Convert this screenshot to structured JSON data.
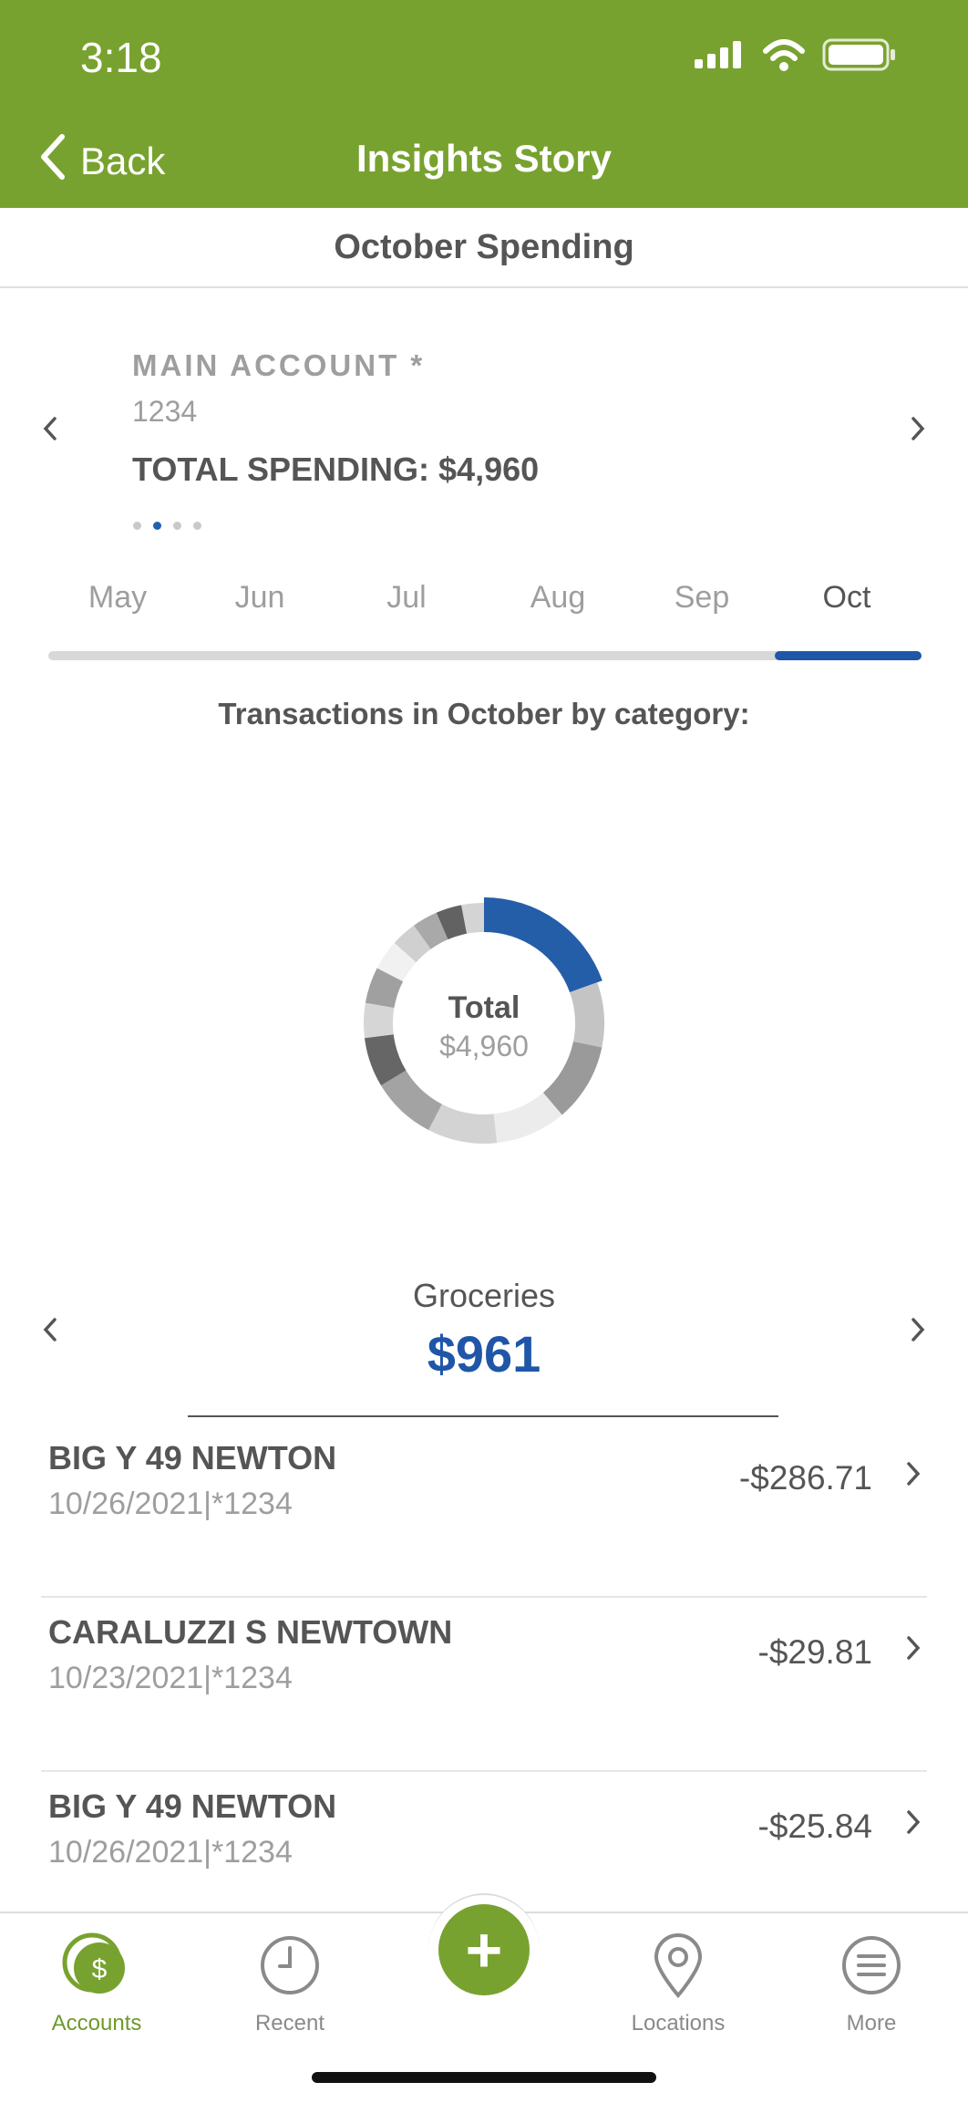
{
  "status_bar": {
    "time": "3:18"
  },
  "header": {
    "back_label": "Back",
    "title": "Insights Story"
  },
  "subheader": {
    "title": "October Spending"
  },
  "account": {
    "name": "MAIN ACCOUNT *",
    "number": "1234",
    "total_spending": "TOTAL SPENDING: $4,960",
    "page_dots": 4,
    "active_dot": 1
  },
  "months": {
    "items": [
      "May",
      "Jun",
      "Jul",
      "Aug",
      "Sep",
      "Oct"
    ],
    "selected": "Oct"
  },
  "chart_data": {
    "type": "pie",
    "title": "Transactions in October by category:",
    "center_label": "Total",
    "center_value": "$4,960",
    "segments": [
      {
        "label": "Groceries",
        "value": 961,
        "color": "#245ea8",
        "selected": true
      },
      {
        "value": 430,
        "color": "#c4c4c4"
      },
      {
        "value": 520,
        "color": "#9a9a9a"
      },
      {
        "value": 470,
        "color": "#ececec"
      },
      {
        "value": 460,
        "color": "#d3d3d3"
      },
      {
        "value": 430,
        "color": "#a3a3a3"
      },
      {
        "value": 330,
        "color": "#666666"
      },
      {
        "value": 230,
        "color": "#d6d6d6"
      },
      {
        "value": 240,
        "color": "#a0a0a0"
      },
      {
        "value": 200,
        "color": "#f1f1f1"
      },
      {
        "value": 170,
        "color": "#d0d0d0"
      },
      {
        "value": 170,
        "color": "#a9a9a9"
      },
      {
        "value": 170,
        "color": "#626262"
      },
      {
        "value": 149,
        "color": "#d4d4d4"
      }
    ]
  },
  "category": {
    "name": "Groceries",
    "amount": "$961"
  },
  "transactions": [
    {
      "name": "BIG Y 49 NEWTON",
      "meta": "10/26/2021|*1234",
      "amount": "-$286.71"
    },
    {
      "name": "CARALUZZI S NEWTOWN",
      "meta": "10/23/2021|*1234",
      "amount": "-$29.81"
    },
    {
      "name": "BIG Y 49 NEWTON",
      "meta": "10/26/2021|*1234",
      "amount": "-$25.84"
    }
  ],
  "nav": {
    "accounts": "Accounts",
    "recent": "Recent",
    "add": "+",
    "locations": "Locations",
    "more": "More"
  },
  "colors": {
    "brand_green": "#78a22f",
    "accent_blue": "#1f56a8",
    "text_gray": "#555555",
    "muted_gray": "#9e9e9e"
  },
  "icons": {
    "status": [
      "signal-icon",
      "wifi-icon",
      "battery-icon"
    ],
    "nav": [
      "accounts-icon",
      "clock-icon",
      "plus-icon",
      "location-pin-icon",
      "menu-icon"
    ]
  }
}
